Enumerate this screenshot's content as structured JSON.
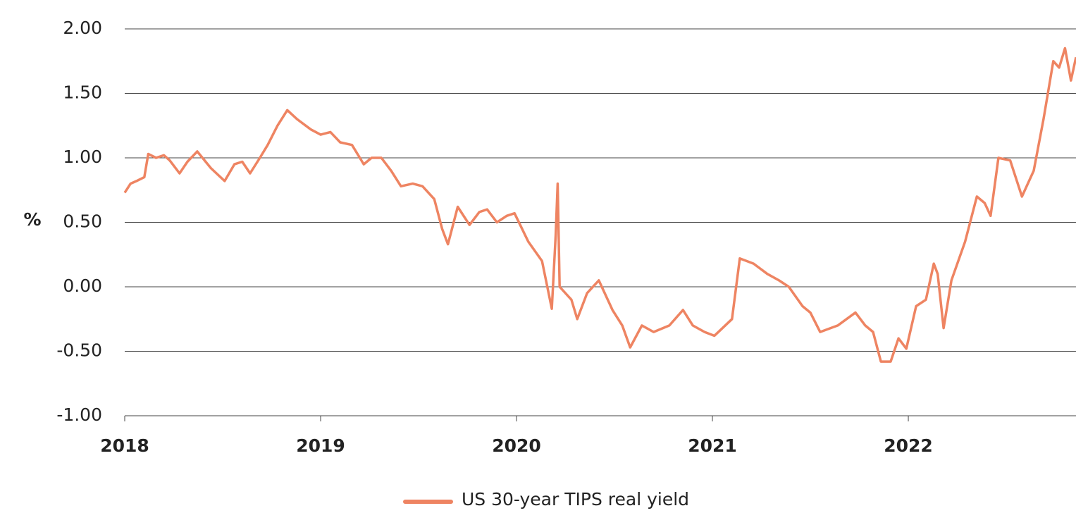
{
  "chart_data": {
    "type": "line",
    "y_label": "%",
    "x": [
      2018.0,
      2018.03,
      2018.06,
      2018.1,
      2018.12,
      2018.16,
      2018.2,
      2018.23,
      2018.28,
      2018.32,
      2018.37,
      2018.44,
      2018.51,
      2018.56,
      2018.6,
      2018.64,
      2018.69,
      2018.73,
      2018.78,
      2018.83,
      2018.88,
      2018.95,
      2019.0,
      2019.05,
      2019.1,
      2019.16,
      2019.22,
      2019.26,
      2019.31,
      2019.36,
      2019.41,
      2019.47,
      2019.52,
      2019.58,
      2019.62,
      2019.65,
      2019.7,
      2019.76,
      2019.81,
      2019.85,
      2019.9,
      2019.95,
      2019.99,
      2020.06,
      2020.13,
      2020.18,
      2020.2,
      2020.21,
      2020.22,
      2020.28,
      2020.31,
      2020.36,
      2020.42,
      2020.49,
      2020.54,
      2020.58,
      2020.64,
      2020.7,
      2020.78,
      2020.85,
      2020.9,
      2020.96,
      2021.01,
      2021.1,
      2021.14,
      2021.21,
      2021.28,
      2021.34,
      2021.39,
      2021.46,
      2021.5,
      2021.55,
      2021.64,
      2021.73,
      2021.78,
      2021.82,
      2021.86,
      2021.91,
      2021.95,
      2021.99,
      2022.04,
      2022.09,
      2022.13,
      2022.15,
      2022.18,
      2022.22,
      2022.29,
      2022.35,
      2022.39,
      2022.42,
      2022.46,
      2022.52,
      2022.58,
      2022.64,
      2022.69,
      2022.74,
      2022.77,
      2022.8,
      2022.83,
      2022.856
    ],
    "series": [
      {
        "name": "US 30-year TIPS real yield",
        "color": "#ee8462",
        "values": [
          0.73,
          0.8,
          0.82,
          0.85,
          1.03,
          1.0,
          1.02,
          0.98,
          0.88,
          0.97,
          1.05,
          0.92,
          0.82,
          0.95,
          0.97,
          0.88,
          1.0,
          1.1,
          1.25,
          1.37,
          1.3,
          1.22,
          1.18,
          1.2,
          1.12,
          1.1,
          0.95,
          1.0,
          1.0,
          0.9,
          0.78,
          0.8,
          0.78,
          0.68,
          0.45,
          0.33,
          0.62,
          0.48,
          0.58,
          0.6,
          0.5,
          0.55,
          0.57,
          0.35,
          0.2,
          -0.17,
          0.4,
          0.8,
          0.0,
          -0.1,
          -0.25,
          -0.05,
          0.05,
          -0.18,
          -0.3,
          -0.47,
          -0.3,
          -0.35,
          -0.3,
          -0.18,
          -0.3,
          -0.35,
          -0.38,
          -0.25,
          0.22,
          0.18,
          0.1,
          0.05,
          0.0,
          -0.15,
          -0.2,
          -0.35,
          -0.3,
          -0.2,
          -0.3,
          -0.35,
          -0.58,
          -0.58,
          -0.4,
          -0.48,
          -0.15,
          -0.1,
          0.18,
          0.1,
          -0.32,
          0.05,
          0.35,
          0.7,
          0.65,
          0.55,
          1.0,
          0.98,
          0.7,
          0.9,
          1.3,
          1.75,
          1.7,
          1.85,
          1.6,
          1.78
        ]
      }
    ],
    "xlim": [
      2018,
      2022.856
    ],
    "xticks": [
      2018,
      2019,
      2020,
      2021,
      2022
    ],
    "ylim": [
      -1,
      2
    ],
    "yticks": [
      {
        "value": -1,
        "label": "-1.00"
      },
      {
        "value": -0.5,
        "label": "-0.50"
      },
      {
        "value": 0,
        "label": "0.00"
      },
      {
        "value": 0.5,
        "label": "0.50"
      },
      {
        "value": 1,
        "label": "1.00"
      },
      {
        "value": 1.5,
        "label": "1.50"
      },
      {
        "value": 2,
        "label": "2.00"
      }
    ],
    "grid": true
  }
}
